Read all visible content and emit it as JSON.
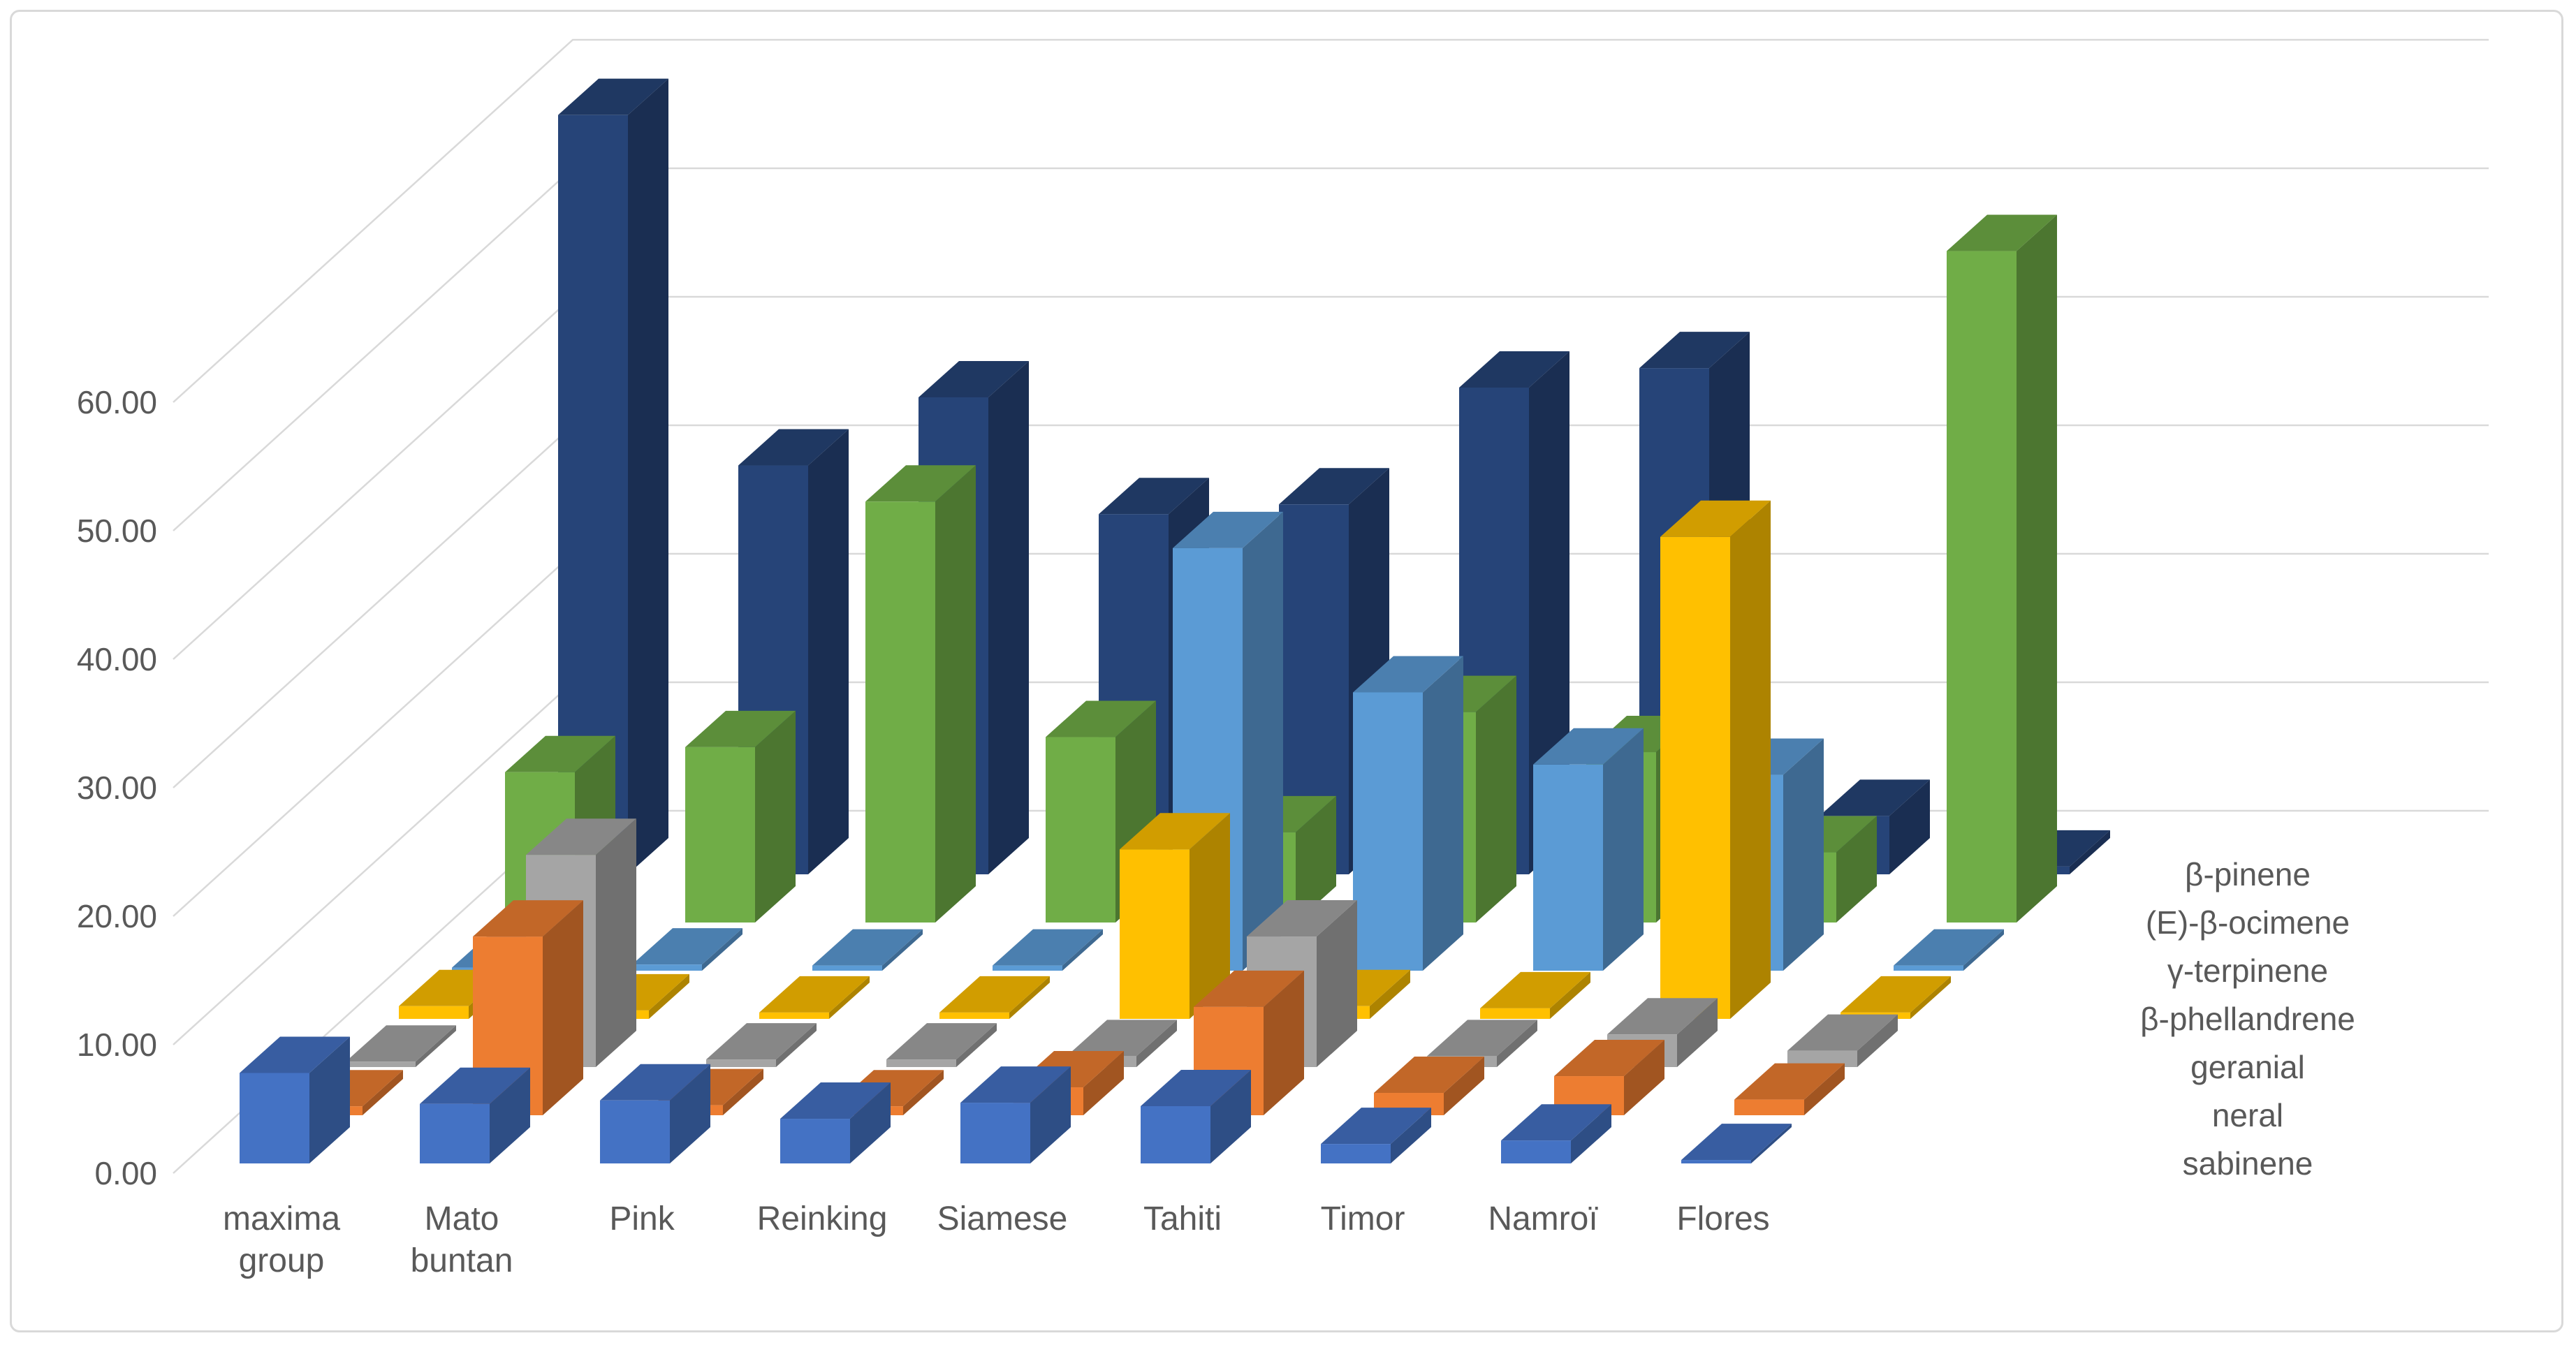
{
  "frame": {
    "background": "#FFFFFF",
    "border_color": "#D9D9D9",
    "gridline_color": "#D9D9D9",
    "label_color": "#595959"
  },
  "chart_data": {
    "type": "bar",
    "subtype": "3d-column",
    "title": "",
    "xlabel": "",
    "ylabel": "",
    "grid": true,
    "legend_position": "depth-axis-right",
    "value_axis": {
      "min": 0,
      "max": 60,
      "major_unit": 10,
      "tick_labels": [
        "0.00",
        "10.00",
        "20.00",
        "30.00",
        "40.00",
        "50.00",
        "60.00"
      ],
      "tick_values": [
        0,
        10,
        20,
        30,
        40,
        50,
        60
      ]
    },
    "categories": [
      "maxima group",
      "Mato buntan",
      "Pink",
      "Reinking",
      "Siamese",
      "Tahiti",
      "Timor",
      "Namroï",
      "Flores"
    ],
    "category_label_lines": [
      [
        "maxima",
        "group"
      ],
      [
        "Mato",
        "buntan"
      ],
      [
        "Pink"
      ],
      [
        "Reinking"
      ],
      [
        "Siamese"
      ],
      [
        "Tahiti"
      ],
      [
        "Timor"
      ],
      [
        "Namroï"
      ],
      [
        "Flores"
      ]
    ],
    "series_front_to_back": [
      {
        "name": "sabinene",
        "color": "#4472C4",
        "values": [
          7.9,
          5.2,
          5.5,
          3.9,
          5.3,
          5.0,
          1.7,
          2.0,
          0.3
        ]
      },
      {
        "name": "neral",
        "color": "#ED7D31",
        "values": [
          0.8,
          16.0,
          0.9,
          0.8,
          2.5,
          9.7,
          2.0,
          3.5,
          1.4
        ]
      },
      {
        "name": "geranial",
        "color": "#A5A5A5",
        "values": [
          0.5,
          19.5,
          0.7,
          0.7,
          1.0,
          12.0,
          1.0,
          3.0,
          1.5
        ]
      },
      {
        "name": "β-phellandrene",
        "color": "#FFC000",
        "values": [
          1.2,
          0.8,
          0.6,
          0.6,
          16.0,
          1.2,
          1.0,
          45.5,
          0.6
        ]
      },
      {
        "name": "γ-terpinene",
        "color": "#5B9BD5",
        "values": [
          0.3,
          0.6,
          0.5,
          0.5,
          41.0,
          27.0,
          20.0,
          19.0,
          0.5
        ]
      },
      {
        "name": "(E)-β-ocimene",
        "color": "#70AD47",
        "values": [
          15.0,
          17.5,
          42.0,
          18.5,
          9.0,
          21.0,
          17.0,
          7.0,
          67.0
        ]
      },
      {
        "name": "β-pinene",
        "color": "#264478",
        "values": [
          78.0,
          42.0,
          49.0,
          37.0,
          38.0,
          50.0,
          52.0,
          6.0,
          0.8
        ]
      }
    ]
  }
}
